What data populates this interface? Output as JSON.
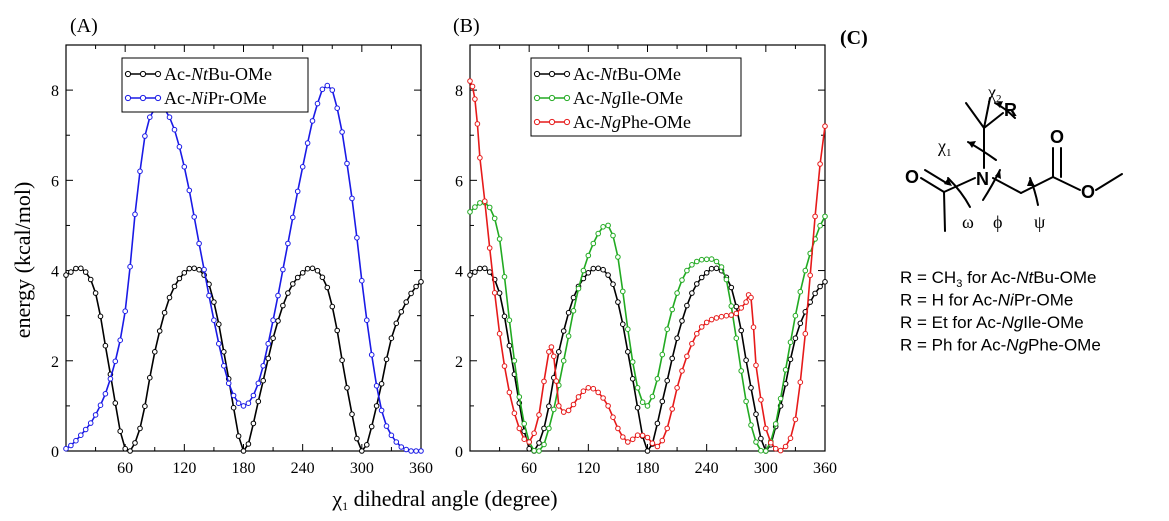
{
  "panel_a": {
    "letter": "(A)",
    "legend": [
      {
        "prefix": "Ac-",
        "italic": "Nt",
        "suffix": "Bu-OMe"
      },
      {
        "prefix": "Ac-",
        "italic": "Ni",
        "suffix": "Pr-OMe"
      }
    ]
  },
  "panel_b": {
    "letter": "(B)",
    "legend": [
      {
        "prefix": "Ac-",
        "italic": "Nt",
        "suffix": "Bu-OMe"
      },
      {
        "prefix": "Ac-",
        "italic": "Ng",
        "suffix": "Ile-OMe"
      },
      {
        "prefix": "Ac-",
        "italic": "Ng",
        "suffix": "Phe-OMe"
      }
    ]
  },
  "axes": {
    "ylabel": "energy (kcal/mol)",
    "xlabel_symbol": "χ",
    "xlabel_sub": "1",
    "xlabel_text": " dihedral angle (degree)",
    "x_ticks": [
      "60",
      "120",
      "180",
      "240",
      "300",
      "360"
    ],
    "y_ticks": [
      "0",
      "2",
      "4",
      "6",
      "8"
    ]
  },
  "panel_c": {
    "letter": "(C)",
    "atoms": {
      "R": "R",
      "O1": "O",
      "O2": "O",
      "O3": "O",
      "N": "N"
    },
    "angles": {
      "chi2": "χ",
      "chi2_sub": "2",
      "chi1": "χ",
      "chi1_sub": "1",
      "omega": "ω",
      "phi": "ϕ",
      "psi": "ψ"
    },
    "rgroups": [
      {
        "pre": "R = CH",
        "sub": "3",
        "mid": " for Ac-",
        "italic": "Nt",
        "post": "Bu-OMe"
      },
      {
        "pre": "R = H for Ac-",
        "sub": "",
        "mid": "",
        "italic": "Ni",
        "post": "Pr-OMe"
      },
      {
        "pre": "R = Et for Ac-",
        "sub": "",
        "mid": "",
        "italic": "Ng",
        "post": "Ile-OMe"
      },
      {
        "pre": "R = Ph for Ac-",
        "sub": "",
        "mid": "",
        "italic": "Ng",
        "post": "Phe-OMe"
      }
    ]
  },
  "chart_data": [
    {
      "type": "line",
      "xlabel": "χ1 dihedral angle (degree)",
      "ylabel": "energy (kcal/mol)",
      "xlim": [
        0,
        360
      ],
      "ylim": [
        0,
        9
      ],
      "legend_position": "top-center",
      "series": [
        {
          "name": "Ac-NtBu-OMe",
          "color": "#000000",
          "x": [
            0,
            15,
            30,
            45,
            60,
            75,
            90,
            105,
            120,
            130,
            140,
            150,
            165,
            180,
            195,
            210,
            225,
            240,
            250,
            260,
            270,
            285,
            300,
            315,
            330,
            345,
            360
          ],
          "y": [
            3.9,
            4.05,
            3.5,
            1.7,
            0.05,
            0.5,
            2.2,
            3.4,
            3.95,
            4.05,
            3.9,
            3.3,
            1.6,
            0.0,
            1.1,
            2.5,
            3.5,
            3.95,
            4.05,
            3.85,
            3.2,
            1.4,
            0.0,
            1.0,
            2.5,
            3.3,
            3.75
          ]
        },
        {
          "name": "Ac-NiPr-OMe",
          "color": "#1a1ae6",
          "x": [
            0,
            15,
            30,
            45,
            60,
            75,
            85,
            95,
            105,
            120,
            135,
            150,
            165,
            180,
            195,
            210,
            225,
            240,
            255,
            265,
            275,
            290,
            305,
            320,
            335,
            350,
            360
          ],
          "y": [
            0.05,
            0.35,
            0.8,
            1.6,
            3.1,
            6.2,
            7.4,
            7.6,
            7.4,
            6.3,
            4.6,
            2.9,
            1.5,
            1.0,
            1.5,
            2.9,
            4.6,
            6.3,
            7.7,
            8.1,
            7.6,
            5.6,
            2.9,
            0.9,
            0.2,
            0.0,
            0.0
          ]
        }
      ]
    },
    {
      "type": "line",
      "xlabel": "χ1 dihedral angle (degree)",
      "ylabel": "energy (kcal/mol)",
      "xlim": [
        0,
        360
      ],
      "ylim": [
        0,
        9
      ],
      "legend_position": "top-center",
      "series": [
        {
          "name": "Ac-NtBu-OMe",
          "color": "#000000",
          "x": [
            0,
            15,
            30,
            45,
            60,
            75,
            90,
            105,
            120,
            130,
            140,
            150,
            165,
            180,
            195,
            210,
            225,
            240,
            250,
            260,
            270,
            285,
            300,
            315,
            330,
            345,
            360
          ],
          "y": [
            3.9,
            4.05,
            3.5,
            1.7,
            0.05,
            0.5,
            2.2,
            3.4,
            3.95,
            4.05,
            3.9,
            3.3,
            1.6,
            0.0,
            1.1,
            2.5,
            3.5,
            3.95,
            4.05,
            3.85,
            3.2,
            1.4,
            0.0,
            1.0,
            2.5,
            3.3,
            3.75
          ]
        },
        {
          "name": "Ac-NgIle-OMe",
          "color": "#22aa22",
          "x": [
            0,
            10,
            20,
            30,
            40,
            50,
            60,
            70,
            80,
            95,
            110,
            125,
            140,
            150,
            160,
            170,
            180,
            190,
            200,
            210,
            220,
            230,
            240,
            250,
            260,
            270,
            280,
            290,
            300,
            310,
            320,
            330,
            340,
            350,
            360
          ],
          "y": [
            5.3,
            5.5,
            5.4,
            4.7,
            2.9,
            1.2,
            0.2,
            0.0,
            0.5,
            2.0,
            3.6,
            4.6,
            5.0,
            4.3,
            2.7,
            1.4,
            1.0,
            1.6,
            2.7,
            3.5,
            4.0,
            4.2,
            4.25,
            4.2,
            3.8,
            2.5,
            1.1,
            0.2,
            0.0,
            0.6,
            1.8,
            3.0,
            4.0,
            4.7,
            5.2
          ]
        },
        {
          "name": "Ac-NgPhe-OMe",
          "color": "#e61a1a",
          "x": [
            0,
            5,
            10,
            20,
            30,
            40,
            50,
            60,
            70,
            80,
            85,
            90,
            100,
            110,
            120,
            130,
            140,
            150,
            160,
            170,
            180,
            190,
            200,
            210,
            220,
            230,
            240,
            250,
            260,
            270,
            280,
            285,
            290,
            300,
            310,
            320,
            330,
            340,
            350,
            360
          ],
          "y": [
            8.2,
            7.8,
            6.5,
            4.5,
            2.6,
            1.3,
            0.5,
            0.2,
            0.8,
            2.2,
            2.1,
            1.0,
            0.9,
            1.2,
            1.4,
            1.3,
            1.0,
            0.5,
            0.2,
            0.35,
            0.3,
            0.1,
            0.5,
            1.4,
            2.1,
            2.6,
            2.85,
            2.95,
            3.0,
            3.05,
            3.3,
            3.4,
            1.9,
            0.5,
            0.05,
            0.1,
            0.7,
            2.6,
            5.2,
            7.2
          ]
        }
      ]
    }
  ]
}
